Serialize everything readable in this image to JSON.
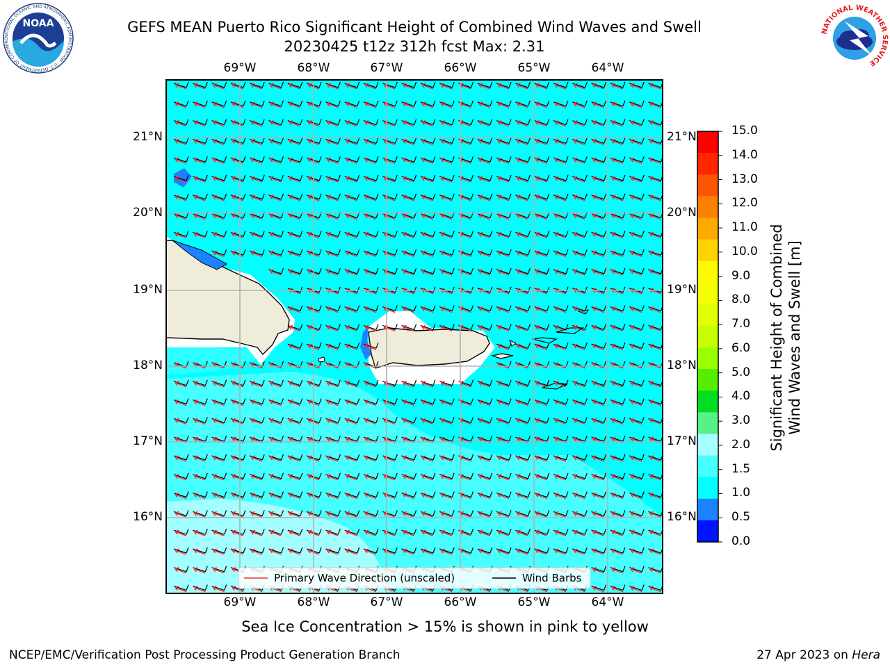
{
  "header": {
    "title_line1": "GEFS MEAN Puerto Rico Significant Height of Combined Wind Waves and Swell",
    "title_line2": "20230425 t12z 312h fcst   Max: 2.31",
    "noaa_logo_text": "NOAA",
    "noaa_ring_text": "NATIONAL OCEANIC AND ATMOSPHERIC ADMINISTRATION · U.S. DEPARTMENT OF COMMERCE",
    "nws_ring_text": "NATIONAL WEATHER SERVICE"
  },
  "map": {
    "lon_labels": [
      "69°W",
      "68°W",
      "67°W",
      "66°W",
      "65°W",
      "64°W"
    ],
    "lat_labels": [
      "21°N",
      "20°N",
      "19°N",
      "18°N",
      "17°N",
      "16°N"
    ],
    "lon_range": [
      -70.0,
      -63.25
    ],
    "lat_range": [
      15.0,
      21.75
    ],
    "legend": {
      "wave_label": "Primary Wave Direction (unscaled)",
      "wind_label": "Wind Barbs",
      "wave_color": "#ff2a2a",
      "wind_color": "#000000"
    },
    "colors": {
      "sea_high": "#00ffff",
      "sea_mid": "#47ffff",
      "sea_low": "#a3ffff",
      "land": "#efecda",
      "shallow": "#1e90ff",
      "grid": "#b0b0b0"
    }
  },
  "colorbar": {
    "label": "Significant Height of Combined Wind Waves and Swell [m]",
    "label_line1": "Significant Height of Combined",
    "label_line2": "Wind Waves and Swell [m]",
    "ticks": [
      "15.0",
      "14.0",
      "13.0",
      "12.0",
      "11.0",
      "10.0",
      "9.0",
      "8.0",
      "7.0",
      "6.0",
      "5.0",
      "4.0",
      "3.0",
      "2.0",
      "1.5",
      "1.0",
      "0.5",
      "0.0"
    ],
    "colors_top_to_bottom": [
      "#ff0000",
      "#ff2600",
      "#ff5500",
      "#ff8000",
      "#ffa800",
      "#ffd200",
      "#fffa00",
      "#f4ff00",
      "#e0ff00",
      "#c8ff00",
      "#99ff00",
      "#55ee00",
      "#00dd22",
      "#55f288",
      "#a8ffff",
      "#47ffff",
      "#00ffff",
      "#1e82ff",
      "#0014ff"
    ]
  },
  "footer": {
    "note": "Sea Ice Concentration > 15% is shown in pink to yellow",
    "left": "NCEP/EMC/Verification Post Processing Product Generation Branch",
    "right_prefix": "27 Apr 2023 on ",
    "right_host": "Hera"
  }
}
